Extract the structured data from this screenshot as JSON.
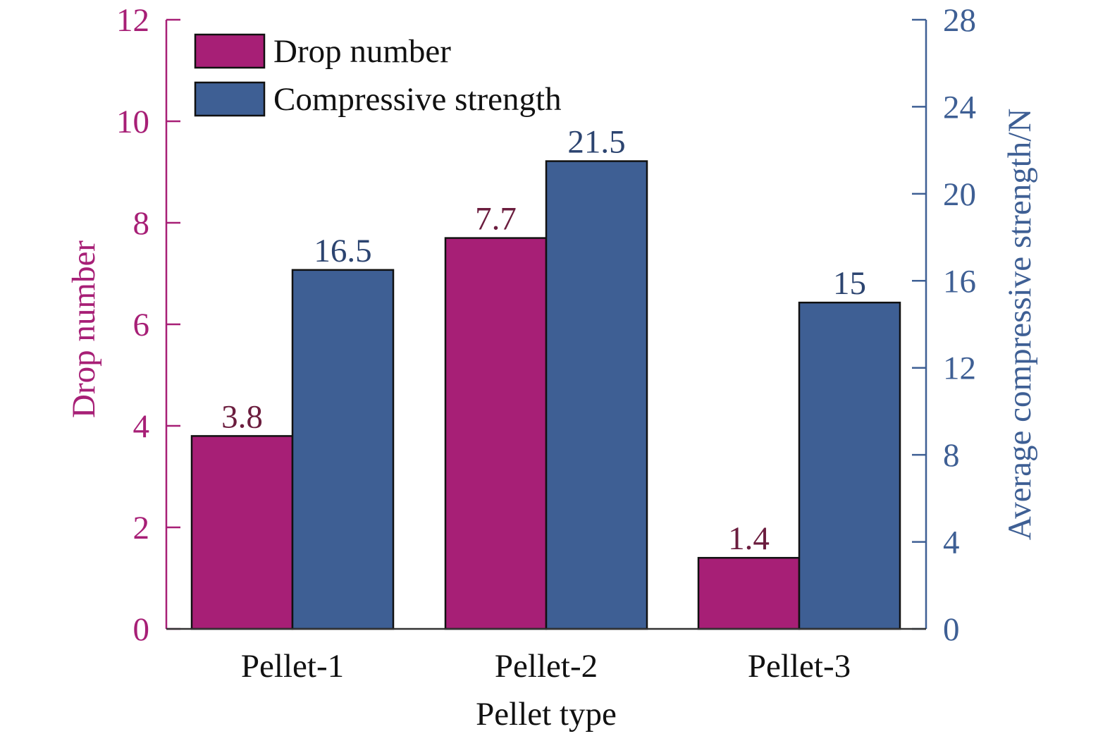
{
  "chart_data": {
    "type": "bar",
    "xlabel": "Pellet type",
    "categories": [
      "Pellet-1",
      "Pellet-2",
      "Pellet-3"
    ],
    "y_left": {
      "label": "Drop number",
      "range": [
        0,
        12
      ],
      "ticks": [
        0,
        2,
        4,
        6,
        8,
        10,
        12
      ],
      "color": "#a71f76"
    },
    "y_right": {
      "label": "Average compressive strength/N",
      "range": [
        0,
        28
      ],
      "ticks": [
        0,
        4,
        8,
        12,
        16,
        20,
        24,
        28
      ],
      "color": "#3e5f94"
    },
    "series": [
      {
        "name": "Drop number",
        "axis": "left",
        "color": "#a71f76",
        "label_color": "#6b1d3e",
        "values": [
          3.8,
          7.7,
          1.4
        ],
        "value_labels": [
          "3.8",
          "7.7",
          "1.4"
        ]
      },
      {
        "name": "Compressive strength",
        "axis": "right",
        "color": "#3e5f94",
        "label_color": "#2c4470",
        "values": [
          16.5,
          21.5,
          15
        ],
        "value_labels": [
          "16.5",
          "21.5",
          "15"
        ]
      }
    ],
    "legend": "top-left",
    "grid": false
  }
}
